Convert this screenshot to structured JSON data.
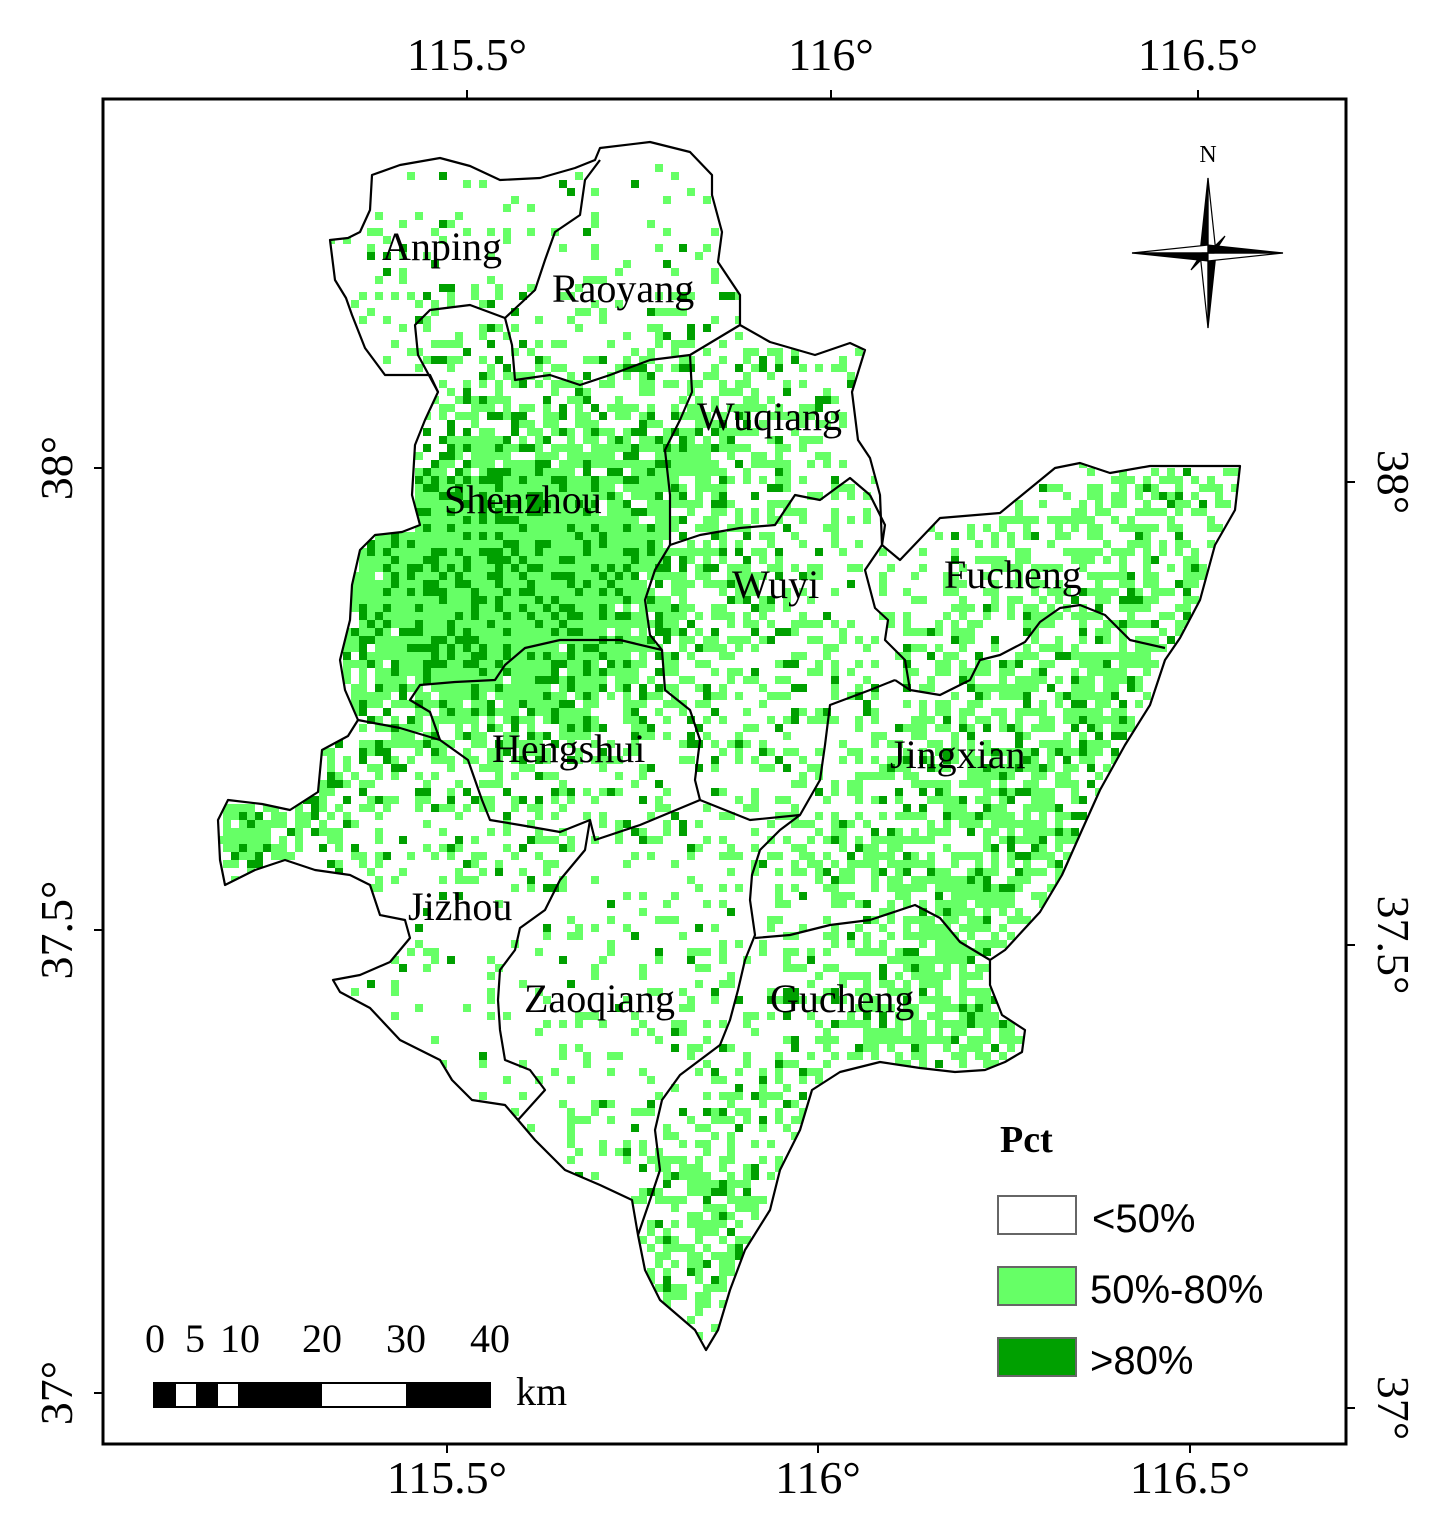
{
  "colors": {
    "background": "#ffffff",
    "class_low": "#ffffff",
    "class_mid": "#66ff66",
    "class_high": "#00a000",
    "frame": "#000000"
  },
  "coordinates": {
    "top": [
      "115.5°",
      "116°",
      "116.5°"
    ],
    "bottom": [
      "115.5°",
      "116°",
      "116.5°"
    ],
    "left": [
      "38°",
      "37.5°",
      "37°"
    ],
    "right": [
      "38°",
      "37.5°",
      "37°"
    ]
  },
  "counties": [
    {
      "name": "Anping"
    },
    {
      "name": "Raoyang"
    },
    {
      "name": "Wuqiang"
    },
    {
      "name": "Shenzhou"
    },
    {
      "name": "Wuyi"
    },
    {
      "name": "Fucheng"
    },
    {
      "name": "Hengshui"
    },
    {
      "name": "Jingxian"
    },
    {
      "name": "Jizhou"
    },
    {
      "name": "Zaoqiang"
    },
    {
      "name": "Gucheng"
    }
  ],
  "north_arrow": {
    "label": "N",
    "icon": "compass-rose-icon"
  },
  "legend": {
    "title": "Pct",
    "items": [
      {
        "label": "<50%",
        "class": "low"
      },
      {
        "label": "50%-80%",
        "class": "mid"
      },
      {
        "label": ">80%",
        "class": "high"
      }
    ]
  },
  "scale_bar": {
    "labels": [
      "0",
      "5",
      "10",
      "20",
      "30",
      "40"
    ],
    "unit": "km"
  }
}
